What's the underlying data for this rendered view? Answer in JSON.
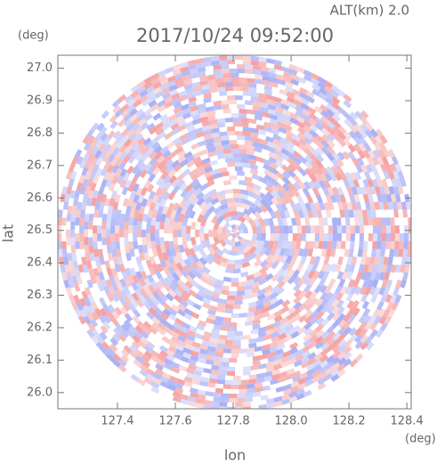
{
  "chart_data": {
    "type": "radar-ppi",
    "title": "2017/10/24 09:52:00",
    "subtitle": "ALT(km) 2.0",
    "x_label": "lon",
    "y_label": "lat",
    "x_unit": "(deg)",
    "y_unit": "(deg)",
    "xlim": [
      127.194,
      128.415
    ],
    "ylim": [
      25.95,
      27.04
    ],
    "xticks": [
      127.4,
      127.6,
      127.8,
      {
        "value": 128.0,
        "label": "128.0"
      },
      128.2,
      128.4
    ],
    "yticks": [
      {
        "value": 26.0,
        "label": "26.0"
      },
      26.1,
      26.2,
      26.3,
      26.4,
      26.5,
      26.6,
      26.7,
      26.8,
      26.9,
      {
        "value": 27.0,
        "label": "27.0"
      }
    ]
  }
}
